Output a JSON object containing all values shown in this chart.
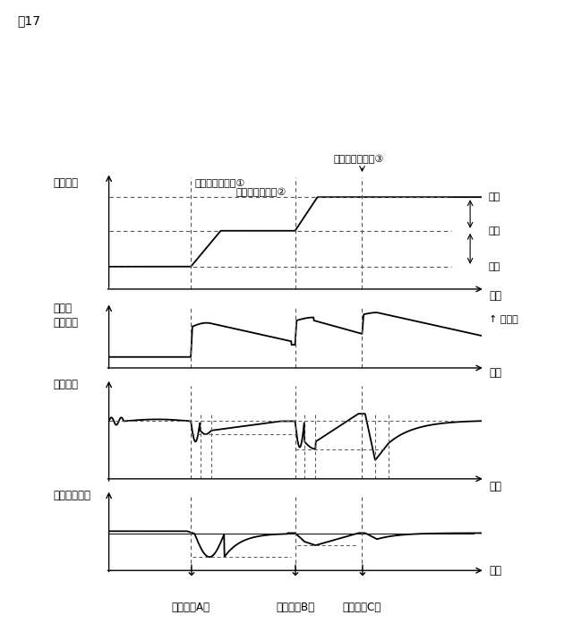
{
  "title": "図17",
  "fig_bg": "#ffffff",
  "subplot_labels": [
    "圧延速度",
    "ロール\nギャップ",
    "入側張力",
    "出側板厚偏差"
  ],
  "xlabel": "時間",
  "step_labels": [
    "ステップ状変更①",
    "ステップ状変更②",
    "ステップ状変更③"
  ],
  "speed_labels": [
    "高速",
    "中速",
    "低速"
  ],
  "close_dir": "閉方向",
  "ctrl_labels": [
    "制御方法A）",
    "制御方法B）",
    "制御方法C）"
  ],
  "vline_x": [
    0.22,
    0.5,
    0.68
  ],
  "text_color": "#000000",
  "line_color": "#000000",
  "dashed_color": "#555555"
}
